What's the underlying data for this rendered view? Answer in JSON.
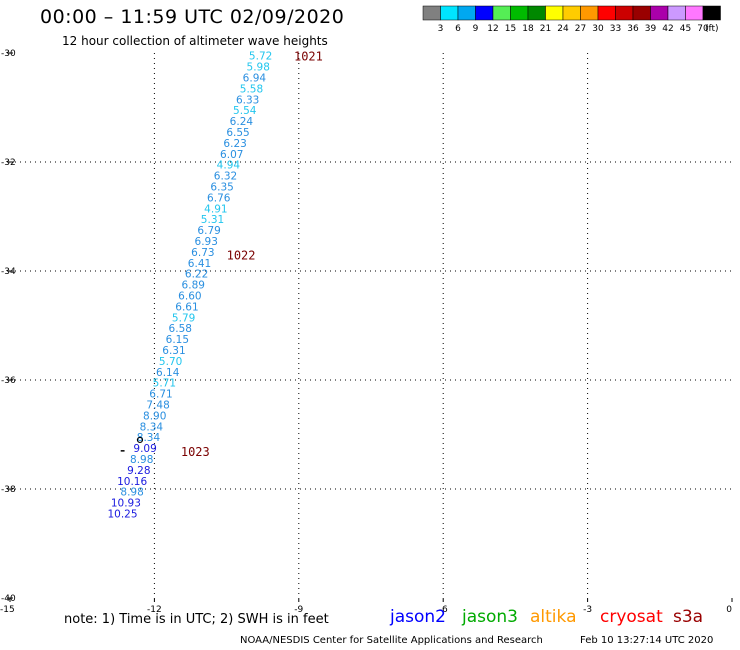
{
  "header": {
    "title": "00:00 – 11:59 UTC 02/09/2020",
    "subtitle": "12 hour collection of altimeter wave heights"
  },
  "legend": {
    "unit": "(ft)",
    "bins": [
      {
        "label": "3",
        "color": "#808080"
      },
      {
        "label": "6",
        "color": "#00e5ff"
      },
      {
        "label": "9",
        "color": "#00a8f0"
      },
      {
        "label": "12",
        "color": "#0000ff"
      },
      {
        "label": "15",
        "color": "#55ee55"
      },
      {
        "label": "18",
        "color": "#00bb00"
      },
      {
        "label": "21",
        "color": "#008800"
      },
      {
        "label": "24",
        "color": "#ffff00"
      },
      {
        "label": "27",
        "color": "#ffcc00"
      },
      {
        "label": "30",
        "color": "#ff9900"
      },
      {
        "label": "33",
        "color": "#ff0000"
      },
      {
        "label": "36",
        "color": "#cc0000"
      },
      {
        "label": "39",
        "color": "#990000"
      },
      {
        "label": "42",
        "color": "#aa00aa"
      },
      {
        "label": "45",
        "color": "#cc99ff"
      },
      {
        "label": "70",
        "color": "#ff77ff"
      },
      {
        "label": "",
        "color": "#000000"
      }
    ]
  },
  "map": {
    "lon_range": [
      -15,
      0
    ],
    "lat_range": [
      -40,
      -30
    ],
    "lon_ticks": [
      "-15",
      "-12",
      "-9",
      "-6",
      "-3",
      "0"
    ],
    "lat_ticks": [
      "-30",
      "-32",
      "-34",
      "-36",
      "-38",
      "-40"
    ],
    "grid": true,
    "pressure_labels": [
      {
        "text": "1021",
        "lon": -9.1,
        "lat": -30.05,
        "color": "#7a0000"
      },
      {
        "text": "1022",
        "lon": -10.5,
        "lat": -33.7,
        "color": "#7a0000"
      },
      {
        "text": "1023",
        "lon": -11.45,
        "lat": -37.3,
        "color": "#7a0000"
      }
    ],
    "observations": [
      {
        "v": "5.72",
        "lon": -9.55,
        "lat": -30.05
      },
      {
        "v": "5.98",
        "lon": -9.6,
        "lat": -30.25
      },
      {
        "v": "6.94",
        "lon": -9.68,
        "lat": -30.45
      },
      {
        "v": "5.58",
        "lon": -9.74,
        "lat": -30.65
      },
      {
        "v": "6.33",
        "lon": -9.82,
        "lat": -30.85
      },
      {
        "v": "5.54",
        "lon": -9.88,
        "lat": -31.05
      },
      {
        "v": "6.24",
        "lon": -9.95,
        "lat": -31.25
      },
      {
        "v": "6.55",
        "lon": -10.02,
        "lat": -31.45
      },
      {
        "v": "6.23",
        "lon": -10.08,
        "lat": -31.65
      },
      {
        "v": "6.07",
        "lon": -10.15,
        "lat": -31.85
      },
      {
        "v": "4.94",
        "lon": -10.22,
        "lat": -32.05
      },
      {
        "v": "6.32",
        "lon": -10.28,
        "lat": -32.25
      },
      {
        "v": "6.35",
        "lon": -10.35,
        "lat": -32.45
      },
      {
        "v": "6.76",
        "lon": -10.42,
        "lat": -32.65
      },
      {
        "v": "4.91",
        "lon": -10.48,
        "lat": -32.85
      },
      {
        "v": "5.31",
        "lon": -10.55,
        "lat": -33.05
      },
      {
        "v": "6.79",
        "lon": -10.62,
        "lat": -33.25
      },
      {
        "v": "6.93",
        "lon": -10.68,
        "lat": -33.45
      },
      {
        "v": "6.73",
        "lon": -10.75,
        "lat": -33.65
      },
      {
        "v": "6.41",
        "lon": -10.82,
        "lat": -33.85
      },
      {
        "v": "6.22",
        "lon": -10.88,
        "lat": -34.05
      },
      {
        "v": "6.89",
        "lon": -10.95,
        "lat": -34.25
      },
      {
        "v": "6.60",
        "lon": -11.02,
        "lat": -34.45
      },
      {
        "v": "6.61",
        "lon": -11.08,
        "lat": -34.65
      },
      {
        "v": "5.79",
        "lon": -11.15,
        "lat": -34.85
      },
      {
        "v": "6.58",
        "lon": -11.22,
        "lat": -35.05
      },
      {
        "v": "6.15",
        "lon": -11.28,
        "lat": -35.25
      },
      {
        "v": "6.31",
        "lon": -11.35,
        "lat": -35.45
      },
      {
        "v": "5.70",
        "lon": -11.42,
        "lat": -35.65
      },
      {
        "v": "6.14",
        "lon": -11.48,
        "lat": -35.85
      },
      {
        "v": "5.71",
        "lon": -11.55,
        "lat": -36.05
      },
      {
        "v": "6.71",
        "lon": -11.62,
        "lat": -36.25
      },
      {
        "v": "7.48",
        "lon": -11.68,
        "lat": -36.45
      },
      {
        "v": "8.90",
        "lon": -11.75,
        "lat": -36.65
      },
      {
        "v": "8.34",
        "lon": -11.82,
        "lat": -36.85
      },
      {
        "v": "8.34",
        "lon": -11.88,
        "lat": -37.05
      },
      {
        "v": "9.09",
        "lon": -11.95,
        "lat": -37.25
      },
      {
        "v": "8.98",
        "lon": -12.02,
        "lat": -37.45
      },
      {
        "v": "9.28",
        "lon": -12.08,
        "lat": -37.65
      },
      {
        "v": "10.16",
        "lon": -12.15,
        "lat": -37.85
      },
      {
        "v": "8.98",
        "lon": -12.22,
        "lat": -38.05
      },
      {
        "v": "10.93",
        "lon": -12.28,
        "lat": -38.25
      },
      {
        "v": "10.25",
        "lon": -12.35,
        "lat": -38.45
      }
    ]
  },
  "footer": {
    "note": "note:  1) Time is in UTC;  2) SWH is in feet",
    "credit": "NOAA/NESDIS Center for Satellite Applications and Research",
    "timestamp": "Feb 10 13:27:14 UTC 2020",
    "satellites": [
      {
        "name": "jason2",
        "color": "#0000ff"
      },
      {
        "name": "jason3",
        "color": "#00aa00"
      },
      {
        "name": "altika",
        "color": "#ff9900"
      },
      {
        "name": "cryosat",
        "color": "#ff0000"
      },
      {
        "name": "s3a",
        "color": "#990000"
      }
    ]
  }
}
